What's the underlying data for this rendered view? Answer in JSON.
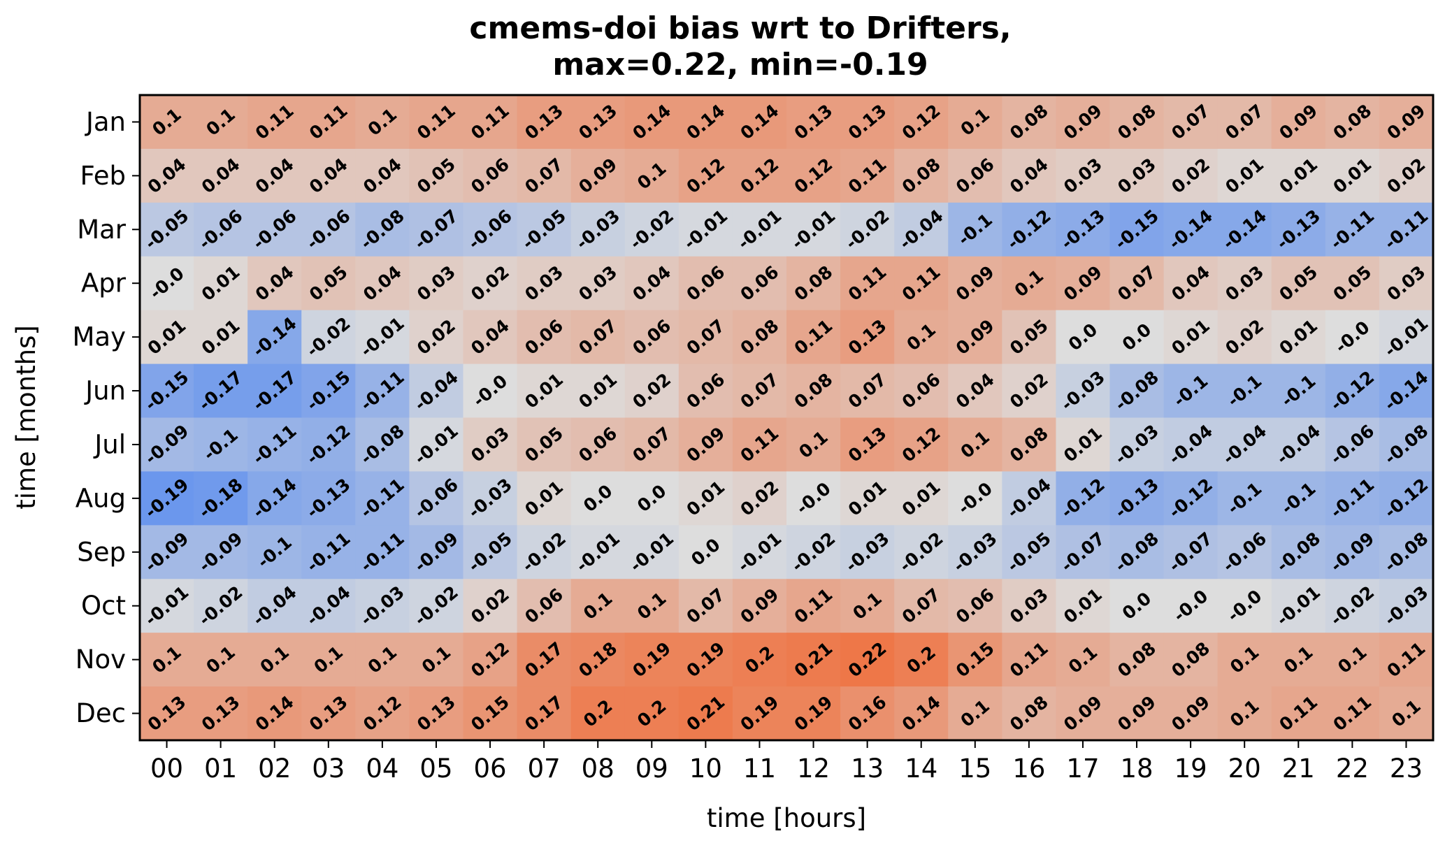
{
  "chart_data": {
    "type": "heatmap",
    "title_line1": "cmems-doi bias wrt to Drifters,",
    "title_line2": "max=0.22, min=-0.19",
    "xlabel": "time [hours]",
    "ylabel": "time [months]",
    "x_categories": [
      "00",
      "01",
      "02",
      "03",
      "04",
      "05",
      "06",
      "07",
      "08",
      "09",
      "10",
      "11",
      "12",
      "13",
      "14",
      "15",
      "16",
      "17",
      "18",
      "19",
      "20",
      "21",
      "22",
      "23"
    ],
    "y_categories": [
      "Jan",
      "Feb",
      "Mar",
      "Apr",
      "May",
      "Jun",
      "Jul",
      "Aug",
      "Sep",
      "Oct",
      "Nov",
      "Dec"
    ],
    "colormap": {
      "negative": "#5b8def",
      "neutral": "#dddddd",
      "positive": "#ee7748"
    },
    "color_limits": [
      -0.22,
      0.22
    ],
    "values": [
      [
        "0.1",
        "0.1",
        "0.11",
        "0.11",
        "0.1",
        "0.11",
        "0.11",
        "0.13",
        "0.13",
        "0.14",
        "0.14",
        "0.14",
        "0.13",
        "0.13",
        "0.12",
        "0.1",
        "0.08",
        "0.09",
        "0.08",
        "0.07",
        "0.07",
        "0.09",
        "0.08",
        "0.09"
      ],
      [
        "0.04",
        "0.04",
        "0.04",
        "0.04",
        "0.04",
        "0.05",
        "0.06",
        "0.07",
        "0.09",
        "0.1",
        "0.12",
        "0.12",
        "0.12",
        "0.11",
        "0.08",
        "0.06",
        "0.04",
        "0.03",
        "0.03",
        "0.02",
        "0.01",
        "0.01",
        "0.01",
        "0.02"
      ],
      [
        "-0.05",
        "-0.06",
        "-0.06",
        "-0.06",
        "-0.08",
        "-0.07",
        "-0.06",
        "-0.05",
        "-0.03",
        "-0.02",
        "-0.01",
        "-0.01",
        "-0.01",
        "-0.02",
        "-0.04",
        "-0.1",
        "-0.12",
        "-0.13",
        "-0.15",
        "-0.14",
        "-0.14",
        "-0.13",
        "-0.11",
        "-0.11"
      ],
      [
        "-0.0",
        "0.01",
        "0.04",
        "0.05",
        "0.04",
        "0.03",
        "0.02",
        "0.03",
        "0.03",
        "0.04",
        "0.06",
        "0.06",
        "0.08",
        "0.11",
        "0.11",
        "0.09",
        "0.1",
        "0.09",
        "0.07",
        "0.04",
        "0.03",
        "0.05",
        "0.05",
        "0.03"
      ],
      [
        "0.01",
        "0.01",
        "-0.14",
        "-0.02",
        "-0.01",
        "0.02",
        "0.04",
        "0.06",
        "0.07",
        "0.06",
        "0.07",
        "0.08",
        "0.11",
        "0.13",
        "0.1",
        "0.09",
        "0.05",
        "0.0",
        "0.0",
        "0.01",
        "0.02",
        "0.01",
        "-0.0",
        "-0.01"
      ],
      [
        "-0.15",
        "-0.17",
        "-0.17",
        "-0.15",
        "-0.11",
        "-0.04",
        "-0.0",
        "0.01",
        "0.01",
        "0.02",
        "0.06",
        "0.07",
        "0.08",
        "0.07",
        "0.06",
        "0.04",
        "0.02",
        "-0.03",
        "-0.08",
        "-0.1",
        "-0.1",
        "-0.1",
        "-0.12",
        "-0.14"
      ],
      [
        "-0.09",
        "-0.1",
        "-0.11",
        "-0.12",
        "-0.08",
        "-0.01",
        "0.03",
        "0.05",
        "0.06",
        "0.07",
        "0.09",
        "0.11",
        "0.1",
        "0.13",
        "0.12",
        "0.1",
        "0.08",
        "0.01",
        "-0.03",
        "-0.04",
        "-0.04",
        "-0.04",
        "-0.06",
        "-0.08"
      ],
      [
        "-0.19",
        "-0.18",
        "-0.14",
        "-0.13",
        "-0.11",
        "-0.06",
        "-0.03",
        "0.01",
        "0.0",
        "0.0",
        "0.01",
        "0.02",
        "-0.0",
        "0.01",
        "0.01",
        "-0.0",
        "-0.04",
        "-0.12",
        "-0.13",
        "-0.12",
        "-0.1",
        "-0.1",
        "-0.11",
        "-0.12"
      ],
      [
        "-0.09",
        "-0.09",
        "-0.1",
        "-0.11",
        "-0.11",
        "-0.09",
        "-0.05",
        "-0.02",
        "-0.01",
        "-0.01",
        "0.0",
        "-0.01",
        "-0.02",
        "-0.03",
        "-0.02",
        "-0.03",
        "-0.05",
        "-0.07",
        "-0.08",
        "-0.07",
        "-0.06",
        "-0.08",
        "-0.09",
        "-0.08"
      ],
      [
        "-0.01",
        "-0.02",
        "-0.04",
        "-0.04",
        "-0.03",
        "-0.02",
        "0.02",
        "0.06",
        "0.1",
        "0.1",
        "0.07",
        "0.09",
        "0.11",
        "0.1",
        "0.07",
        "0.06",
        "0.03",
        "0.01",
        "0.0",
        "-0.0",
        "-0.0",
        "-0.01",
        "-0.02",
        "-0.03"
      ],
      [
        "0.1",
        "0.1",
        "0.1",
        "0.1",
        "0.1",
        "0.1",
        "0.12",
        "0.17",
        "0.18",
        "0.19",
        "0.19",
        "0.2",
        "0.21",
        "0.22",
        "0.2",
        "0.15",
        "0.11",
        "0.1",
        "0.08",
        "0.08",
        "0.1",
        "0.1",
        "0.1",
        "0.11"
      ],
      [
        "0.13",
        "0.13",
        "0.14",
        "0.13",
        "0.12",
        "0.13",
        "0.15",
        "0.17",
        "0.2",
        "0.2",
        "0.21",
        "0.19",
        "0.19",
        "0.16",
        "0.14",
        "0.1",
        "0.08",
        "0.09",
        "0.09",
        "0.09",
        "0.1",
        "0.11",
        "0.11",
        "0.1"
      ]
    ]
  }
}
